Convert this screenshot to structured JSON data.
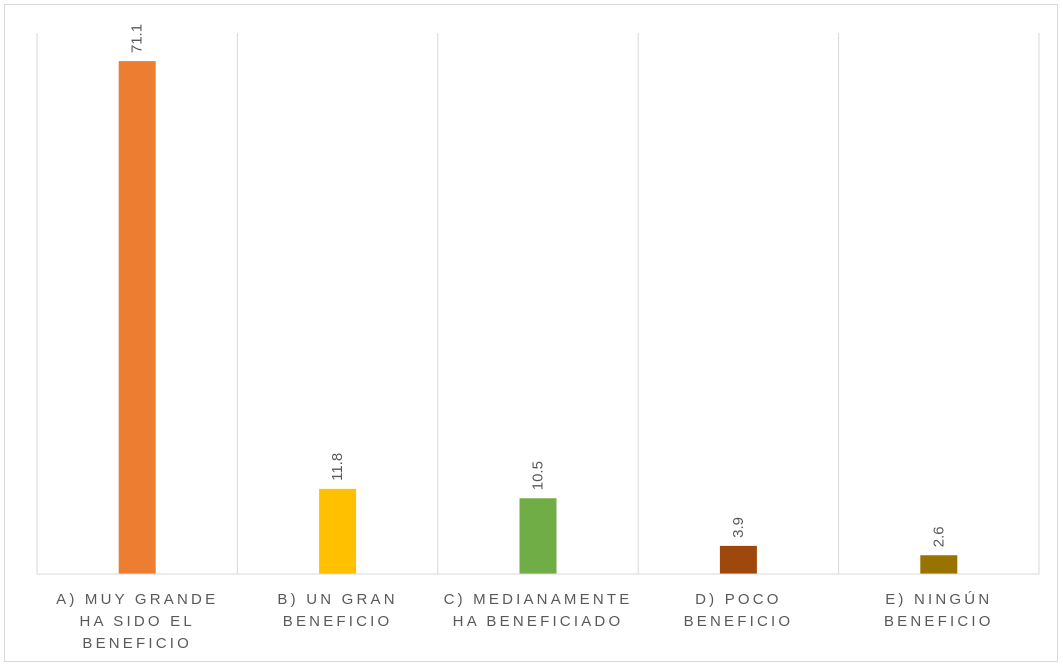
{
  "chart_data": {
    "type": "bar",
    "categories": [
      [
        "A) MUY GRANDE",
        "HA SIDO EL",
        "BENEFICIO"
      ],
      [
        "B) UN GRAN",
        "BENEFICIO"
      ],
      [
        "C) MEDIANAMENTE",
        "HA BENEFICIADO"
      ],
      [
        "D) POCO",
        "BENEFICIO"
      ],
      [
        "E) NINGÚN",
        "BENEFICIO"
      ]
    ],
    "values": [
      71.1,
      11.8,
      10.5,
      3.9,
      2.6
    ],
    "colors": [
      "#ED7D31",
      "#FFC000",
      "#70AD47",
      "#9E480E",
      "#997300"
    ],
    "ylim": [
      0,
      75
    ],
    "grid": "vertical-category-separators",
    "legend": "none",
    "data_labels": "rotated-above-bars"
  }
}
